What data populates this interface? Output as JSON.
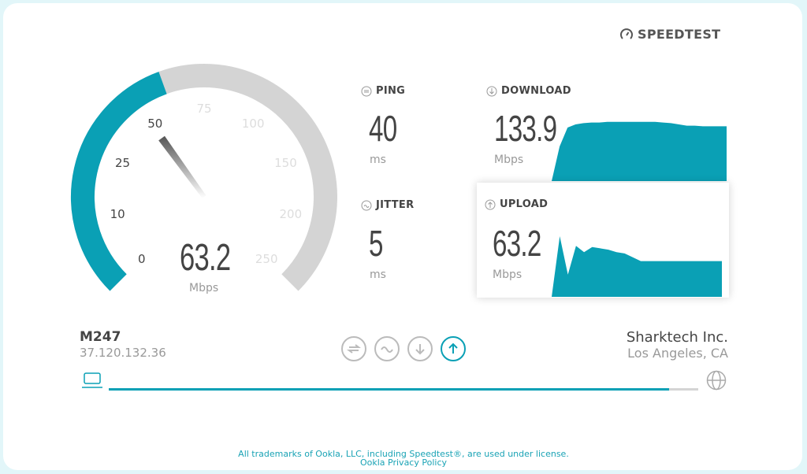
{
  "brand": {
    "name": "SPEEDTEST",
    "icon": "speedometer-icon"
  },
  "gauge": {
    "value": "63.2",
    "unit": "Mbps",
    "current": 63.2,
    "ticks": [
      "0",
      "10",
      "25",
      "50",
      "75",
      "100",
      "150",
      "200",
      "250"
    ],
    "colors": {
      "fill": "#0aa0b5",
      "track": "#d4d4d4"
    }
  },
  "ping": {
    "label": "PING",
    "value": "40",
    "unit": "ms",
    "icon": "ping-icon"
  },
  "jitter": {
    "label": "JITTER",
    "value": "5",
    "unit": "ms",
    "icon": "jitter-icon"
  },
  "download": {
    "label": "DOWNLOAD",
    "value": "133.9",
    "unit": "Mbps",
    "icon": "download-icon",
    "graph": [
      0,
      0.55,
      0.85,
      0.9,
      0.92,
      0.93,
      0.93,
      0.94,
      0.94,
      0.94,
      0.94,
      0.94,
      0.94,
      0.94,
      0.93,
      0.92,
      0.9,
      0.88,
      0.88,
      0.87,
      0.87,
      0.87,
      0.87
    ]
  },
  "upload": {
    "label": "UPLOAD",
    "value": "63.2",
    "unit": "Mbps",
    "icon": "upload-icon",
    "graph": [
      0,
      0.95,
      0.35,
      0.8,
      0.7,
      0.78,
      0.76,
      0.74,
      0.7,
      0.68,
      0.62,
      0.56,
      0.56,
      0.56,
      0.56,
      0.56,
      0.56,
      0.56,
      0.56,
      0.56,
      0.56,
      0.56
    ]
  },
  "client": {
    "name": "M247",
    "ip": "37.120.132.36"
  },
  "server": {
    "name": "Sharktech Inc.",
    "location": "Los Angeles, CA"
  },
  "steps": [
    "ping",
    "jitter",
    "download",
    "upload"
  ],
  "progress": 0.95,
  "accent": "#0aa0b5",
  "footer": {
    "trademark": "All trademarks of Ookla, LLC, including Speedtest®, are used under license.",
    "privacy": "Ookla Privacy Policy"
  }
}
